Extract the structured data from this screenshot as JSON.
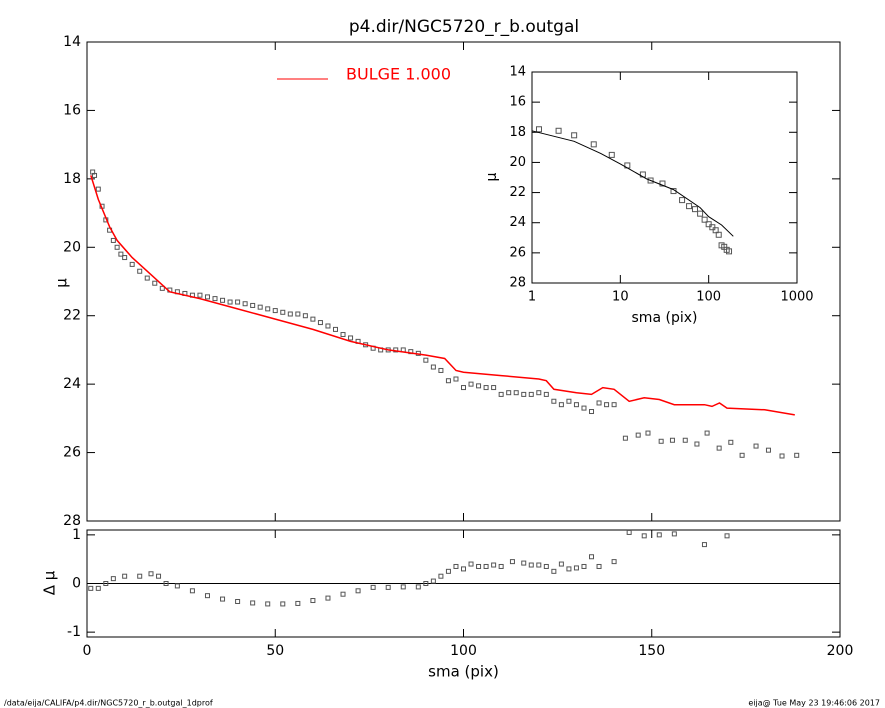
{
  "chart_data": [
    {
      "type": "scatter",
      "title": "p4.dir/NGC5720_r_b.outgal",
      "ylabel": "μ",
      "xlim": [
        0,
        200
      ],
      "ylim": [
        28,
        14
      ],
      "yticks": [
        14,
        16,
        18,
        20,
        22,
        24,
        26,
        28
      ],
      "legend": "top-left",
      "series": [
        {
          "color": "#555555",
          "style": "points",
          "x": [
            1.5,
            2,
            3,
            4,
            5,
            6,
            7,
            8,
            9,
            10,
            12,
            14,
            16,
            18,
            20,
            22,
            24,
            26,
            28,
            30,
            32,
            34,
            36,
            38,
            40,
            42,
            44,
            46,
            48,
            50,
            52,
            54,
            56,
            58,
            60,
            62,
            64,
            66,
            68,
            70,
            72,
            74,
            76,
            78,
            80,
            82,
            84,
            86,
            88,
            90,
            92,
            94,
            96,
            98,
            100,
            102,
            104,
            106,
            108,
            110,
            112,
            114,
            116,
            118,
            120,
            122,
            124,
            126,
            128,
            130,
            132,
            134,
            136,
            138,
            140,
            143,
            146.4,
            149,
            152.5,
            155.5,
            158.9,
            162,
            164.7,
            167.9,
            171,
            174,
            177.7,
            181,
            184.6,
            188.5
          ],
          "values": [
            17.8,
            17.9,
            18.3,
            18.8,
            19.2,
            19.5,
            19.8,
            20.0,
            20.2,
            20.3,
            20.5,
            20.7,
            20.9,
            21.05,
            21.2,
            21.25,
            21.3,
            21.35,
            21.4,
            21.4,
            21.45,
            21.5,
            21.55,
            21.6,
            21.6,
            21.65,
            21.7,
            21.75,
            21.8,
            21.85,
            21.9,
            21.95,
            21.95,
            22.0,
            22.1,
            22.2,
            22.3,
            22.4,
            22.55,
            22.65,
            22.75,
            22.85,
            22.95,
            23.0,
            23.0,
            23.0,
            23.0,
            23.05,
            23.1,
            23.3,
            23.5,
            23.6,
            23.9,
            23.85,
            24.1,
            24.0,
            24.05,
            24.1,
            24.1,
            24.3,
            24.25,
            24.25,
            24.3,
            24.3,
            24.25,
            24.3,
            24.5,
            24.6,
            24.5,
            24.6,
            24.7,
            24.8,
            24.55,
            24.6,
            24.6,
            25.58,
            25.49,
            25.43,
            25.67,
            25.64,
            25.64,
            25.75,
            25.43,
            25.87,
            25.7,
            26.08,
            25.81,
            25.93,
            26.1,
            26.08
          ]
        },
        {
          "name": "BULGE  1.000",
          "color": "#ff0000",
          "style": "line",
          "x": [
            1,
            3,
            6,
            8,
            12,
            16,
            20,
            22,
            30,
            40,
            50,
            60,
            70,
            80,
            90,
            95,
            98,
            100,
            110,
            120,
            122,
            124,
            130,
            134,
            137,
            140,
            144,
            148,
            152,
            156,
            164,
            166,
            168,
            170,
            180,
            188
          ],
          "values": [
            17.9,
            18.6,
            19.4,
            19.8,
            20.3,
            20.7,
            21.1,
            21.3,
            21.5,
            21.8,
            22.1,
            22.4,
            22.75,
            23.0,
            23.15,
            23.25,
            23.6,
            23.65,
            23.75,
            23.85,
            23.9,
            24.15,
            24.25,
            24.3,
            24.1,
            24.15,
            24.5,
            24.4,
            24.45,
            24.6,
            24.6,
            24.65,
            24.55,
            24.7,
            24.75,
            24.9
          ]
        }
      ]
    },
    {
      "type": "scatter",
      "xlabel": "sma (pix)",
      "ylabel": "μ",
      "xscale": "log",
      "xlim": [
        1,
        1000
      ],
      "xticks": [
        1,
        10,
        100,
        1000
      ],
      "ylim": [
        28,
        14
      ],
      "yticks": [
        14,
        16,
        18,
        20,
        22,
        24,
        26,
        28
      ],
      "series": [
        {
          "color": "#555555",
          "style": "points",
          "x": [
            1.2,
            2,
            3,
            5,
            8,
            12,
            18,
            22,
            30,
            40,
            50,
            60,
            70,
            80,
            90,
            100,
            110,
            120,
            130,
            140,
            150,
            160,
            170
          ],
          "values": [
            17.8,
            17.9,
            18.2,
            18.8,
            19.5,
            20.2,
            20.8,
            21.2,
            21.4,
            21.9,
            22.5,
            22.9,
            23.1,
            23.4,
            23.8,
            24.1,
            24.3,
            24.5,
            24.8,
            25.5,
            25.6,
            25.8,
            25.9
          ]
        },
        {
          "color": "#000000",
          "style": "line",
          "x": [
            1,
            3,
            6,
            10,
            20,
            40,
            80,
            100,
            140,
            190
          ],
          "values": [
            17.9,
            18.6,
            19.4,
            20.1,
            21.1,
            21.8,
            23.0,
            23.6,
            24.15,
            24.9
          ]
        }
      ]
    },
    {
      "type": "scatter",
      "xlabel": "sma (pix)",
      "ylabel": "Δ μ",
      "xlim": [
        0,
        200
      ],
      "xticks": [
        0,
        50,
        100,
        150,
        200
      ],
      "ylim": [
        -1.1,
        1.1
      ],
      "yticks": [
        -1,
        0,
        1
      ],
      "series": [
        {
          "color": "#555555",
          "style": "points",
          "x": [
            1,
            3,
            5,
            7,
            10,
            14,
            17,
            19,
            21,
            24,
            28,
            32,
            36,
            40,
            44,
            48,
            52,
            56,
            60,
            64,
            68,
            72,
            76,
            80,
            84,
            88,
            90,
            92,
            94,
            96,
            98,
            100,
            102,
            104,
            106,
            108,
            110,
            113,
            116,
            118,
            120,
            122,
            124,
            126,
            128,
            130,
            132,
            134,
            136,
            140,
            144,
            148,
            152,
            156,
            164,
            170
          ],
          "values": [
            -0.1,
            -0.1,
            0.0,
            0.1,
            0.15,
            0.15,
            0.2,
            0.15,
            0.0,
            -0.05,
            -0.15,
            -0.25,
            -0.32,
            -0.37,
            -0.4,
            -0.42,
            -0.42,
            -0.41,
            -0.35,
            -0.3,
            -0.22,
            -0.15,
            -0.08,
            -0.08,
            -0.07,
            -0.07,
            0.0,
            0.05,
            0.15,
            0.25,
            0.35,
            0.3,
            0.4,
            0.35,
            0.35,
            0.38,
            0.35,
            0.45,
            0.42,
            0.38,
            0.38,
            0.35,
            0.25,
            0.4,
            0.3,
            0.32,
            0.35,
            0.55,
            0.35,
            0.45,
            1.05,
            0.98,
            1.0,
            1.02,
            0.8,
            0.98
          ]
        }
      ]
    }
  ],
  "footer": {
    "left": "/data/eija/CALIFA/p4.dir/NGC5720_r_b.outgal_1dprof",
    "right": "eija@  Tue May 23 19:46:06 2017"
  }
}
